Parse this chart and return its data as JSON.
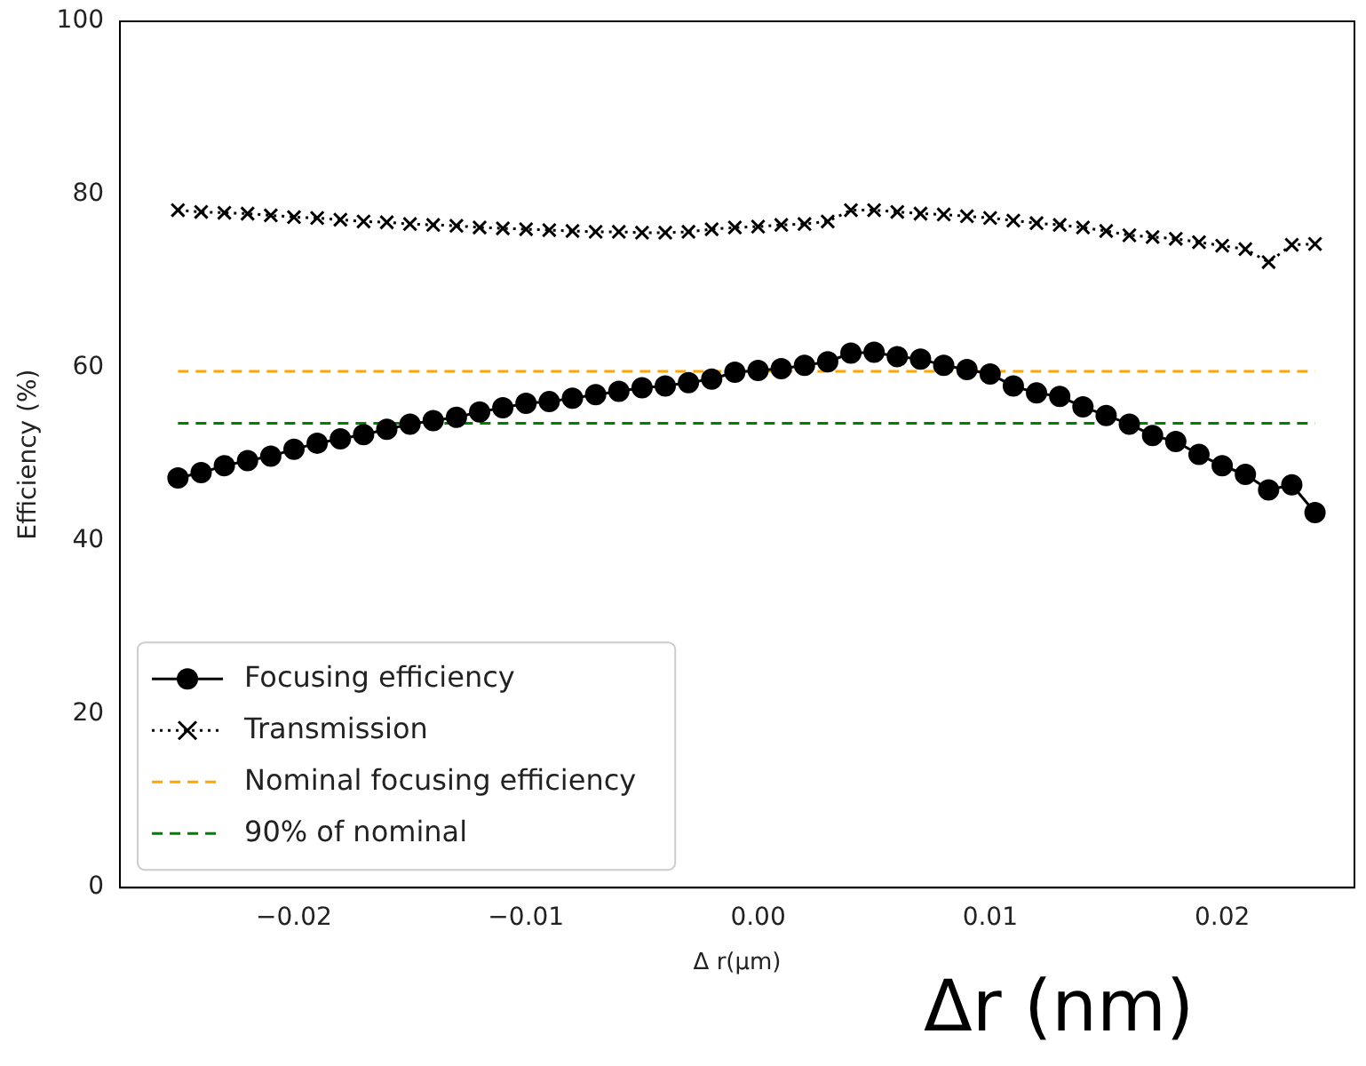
{
  "chart_data": {
    "type": "line",
    "xlabel": "Δ r(μm)",
    "ylabel": "Efficiency (%)",
    "x": [
      -0.025,
      -0.024,
      -0.023,
      -0.022,
      -0.021,
      -0.02,
      -0.019,
      -0.018,
      -0.017,
      -0.016,
      -0.015,
      -0.014,
      -0.013,
      -0.012,
      -0.011,
      -0.01,
      -0.009,
      -0.008,
      -0.007,
      -0.006,
      -0.005,
      -0.004,
      -0.003,
      -0.002,
      -0.001,
      0.0,
      0.001,
      0.002,
      0.003,
      0.004,
      0.005,
      0.006,
      0.007,
      0.008,
      0.009,
      0.01,
      0.011,
      0.012,
      0.013,
      0.014,
      0.015,
      0.016,
      0.017,
      0.018,
      0.019,
      0.02,
      0.021,
      0.022,
      0.023,
      0.024
    ],
    "series": [
      {
        "name": "Focusing efficiency",
        "color": "#000000",
        "marker": "circle",
        "line_style": "solid",
        "values": [
          47.3,
          47.9,
          48.7,
          49.3,
          49.8,
          50.6,
          51.3,
          51.8,
          52.3,
          52.9,
          53.5,
          53.9,
          54.3,
          54.9,
          55.4,
          55.9,
          56.1,
          56.5,
          56.9,
          57.3,
          57.7,
          57.9,
          58.3,
          58.7,
          59.5,
          59.7,
          59.9,
          60.3,
          60.7,
          61.7,
          61.8,
          61.3,
          61.0,
          60.3,
          59.8,
          59.3,
          57.9,
          57.1,
          56.7,
          55.5,
          54.5,
          53.5,
          52.2,
          51.5,
          50.0,
          48.7,
          47.7,
          45.9,
          46.5,
          43.3
        ]
      },
      {
        "name": "Transmission",
        "color": "#000000",
        "marker": "cross",
        "line_style": "dotted",
        "values": [
          78.2,
          78.0,
          77.9,
          77.8,
          77.6,
          77.4,
          77.3,
          77.1,
          76.9,
          76.8,
          76.6,
          76.5,
          76.4,
          76.2,
          76.1,
          76.0,
          75.9,
          75.8,
          75.7,
          75.7,
          75.6,
          75.6,
          75.7,
          76.0,
          76.2,
          76.3,
          76.5,
          76.6,
          76.9,
          78.2,
          78.2,
          78.0,
          77.8,
          77.7,
          77.5,
          77.3,
          77.0,
          76.7,
          76.5,
          76.2,
          75.8,
          75.3,
          75.1,
          74.9,
          74.5,
          74.1,
          73.7,
          72.2,
          74.2,
          74.3
        ]
      }
    ],
    "ref_lines": [
      {
        "axis": "y",
        "value": 59.6,
        "label": "Nominal focusing efficiency",
        "color": "#ffa500",
        "line_style": "dashed"
      },
      {
        "axis": "y",
        "value": 53.6,
        "label": "90% of nominal",
        "color": "#008000",
        "line_style": "dashed"
      }
    ],
    "xlim": [
      -0.0275,
      0.0257
    ],
    "xticks": [
      {
        "value": -0.02,
        "label": "−0.02"
      },
      {
        "value": -0.01,
        "label": "−0.01"
      },
      {
        "value": 0,
        "label": "0.00"
      },
      {
        "value": 0.01,
        "label": "0.01"
      },
      {
        "value": 0.02,
        "label": "0.02"
      }
    ],
    "ylim": [
      0,
      100
    ],
    "yticks": [
      0,
      20,
      40,
      60,
      80,
      100
    ],
    "grid": false,
    "legend": "bottom left",
    "annotations": [
      "Δr (nm)"
    ]
  }
}
